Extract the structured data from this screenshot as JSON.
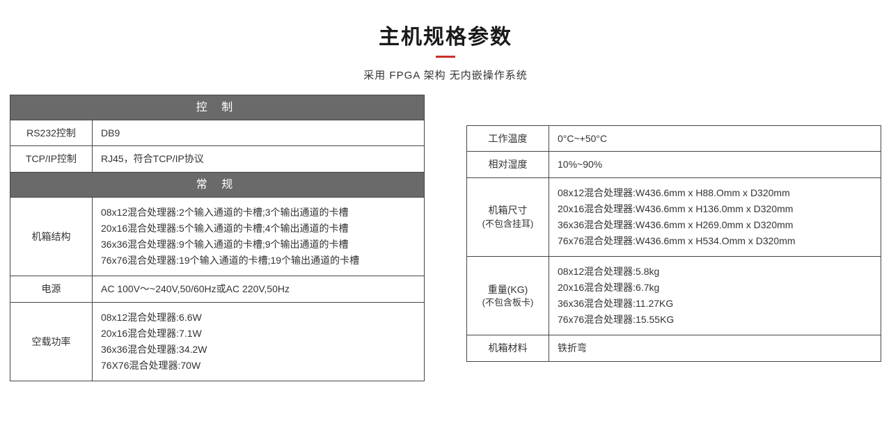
{
  "title": "主机规格参数",
  "subtitle": "采用 FPGA 架构  无内嵌操作系统",
  "left": {
    "section1_header": "控 制",
    "rs232_label": "RS232控制",
    "rs232_value": "DB9",
    "tcpip_label": "TCP/IP控制",
    "tcpip_value": "RJ45，符合TCP/IP协议",
    "section2_header": "常 规",
    "chassis_label": "机箱结构",
    "chassis_l1": "08x12混合处理器:2个输入通道的卡槽;3个输出通道的卡槽",
    "chassis_l2": "20x16混合处理器:5个输入通道的卡槽;4个输出通道的卡槽",
    "chassis_l3": "36x36混合处理器:9个输入通道的卡槽;9个输出通道的卡槽",
    "chassis_l4": "76x76混合处理器:19个输入通道的卡槽;19个输出通道的卡槽",
    "power_label": "电源",
    "power_value": "AC 100V～~240V,50/60Hz或AC 220V,50Hz",
    "noload_label": "空载功率",
    "noload_l1": "08x12混合处理器:6.6W",
    "noload_l2": "20x16混合处理器:7.1W",
    "noload_l3": "36x36混合处理器:34.2W",
    "noload_l4": "76X76混合处理器:70W"
  },
  "right": {
    "temp_label": "工作温度",
    "temp_value": "0°C~+50°C",
    "humidity_label": "相对湿度",
    "humidity_value": "10%~90%",
    "dim_label_l1": "机箱尺寸",
    "dim_label_l2": "(不包含挂耳)",
    "dim_l1": "08x12混合处理器:W436.6mm x H88.Omm x D320mm",
    "dim_l2": "20x16混合处理器:W436.6mm x H136.0mm x D320mm",
    "dim_l3": "36x36混合处理器:W436.6mm x H269.0mm x D320mm",
    "dim_l4": "76x76混合处理器:W436.6mm x H534.Omm x D320mm",
    "weight_label_l1": "重量(KG)",
    "weight_label_l2": "(不包含板卡)",
    "weight_l1": "08x12混合处理器:5.8kg",
    "weight_l2": "20x16混合处理器:6.7kg",
    "weight_l3": "36x36混合处理器:11.27KG",
    "weight_l4": "76x76混合处理器:15.55KG",
    "material_label": "机箱材料",
    "material_value": "铁折弯"
  },
  "colors": {
    "header_bg": "#6a6a6a",
    "accent": "#c9302c",
    "border": "#444444"
  }
}
